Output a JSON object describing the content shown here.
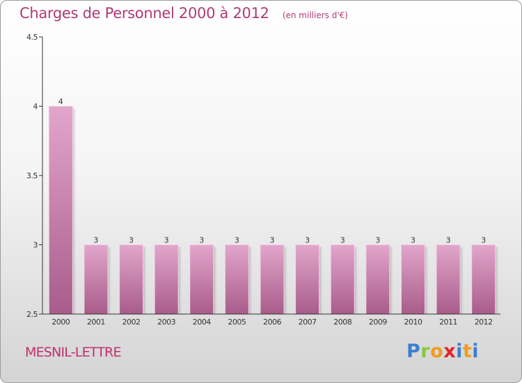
{
  "header": {
    "title": "Charges de Personnel 2000 à 2012",
    "subtitle": "(en milliers d'€)"
  },
  "footer": {
    "commune": "MESNIL-LETTRE",
    "logo_text": "Proxiti"
  },
  "colors": {
    "accent": "#b03a76",
    "bar_top": "#e2a6cb",
    "bar_bottom": "#a85c8a"
  },
  "chart_data": {
    "type": "bar",
    "title": "Charges de Personnel 2000 à 2012",
    "subtitle": "(en milliers d'€)",
    "categories": [
      "2000",
      "2001",
      "2002",
      "2003",
      "2004",
      "2005",
      "2006",
      "2007",
      "2008",
      "2009",
      "2010",
      "2011",
      "2012"
    ],
    "values": [
      4,
      3,
      3,
      3,
      3,
      3,
      3,
      3,
      3,
      3,
      3,
      3,
      3
    ],
    "data_labels": [
      "4",
      "3",
      "3",
      "3",
      "3",
      "3",
      "3",
      "3",
      "3",
      "3",
      "3",
      "3",
      "3"
    ],
    "ylim": [
      2.5,
      4.5
    ],
    "yticks": [
      2.5,
      3,
      3.5,
      4,
      4.5
    ],
    "ytick_labels": [
      "2.5",
      "3",
      "3.5",
      "4",
      "4.5"
    ],
    "xlabel": "",
    "ylabel": "",
    "grid": false,
    "legend": "none"
  }
}
